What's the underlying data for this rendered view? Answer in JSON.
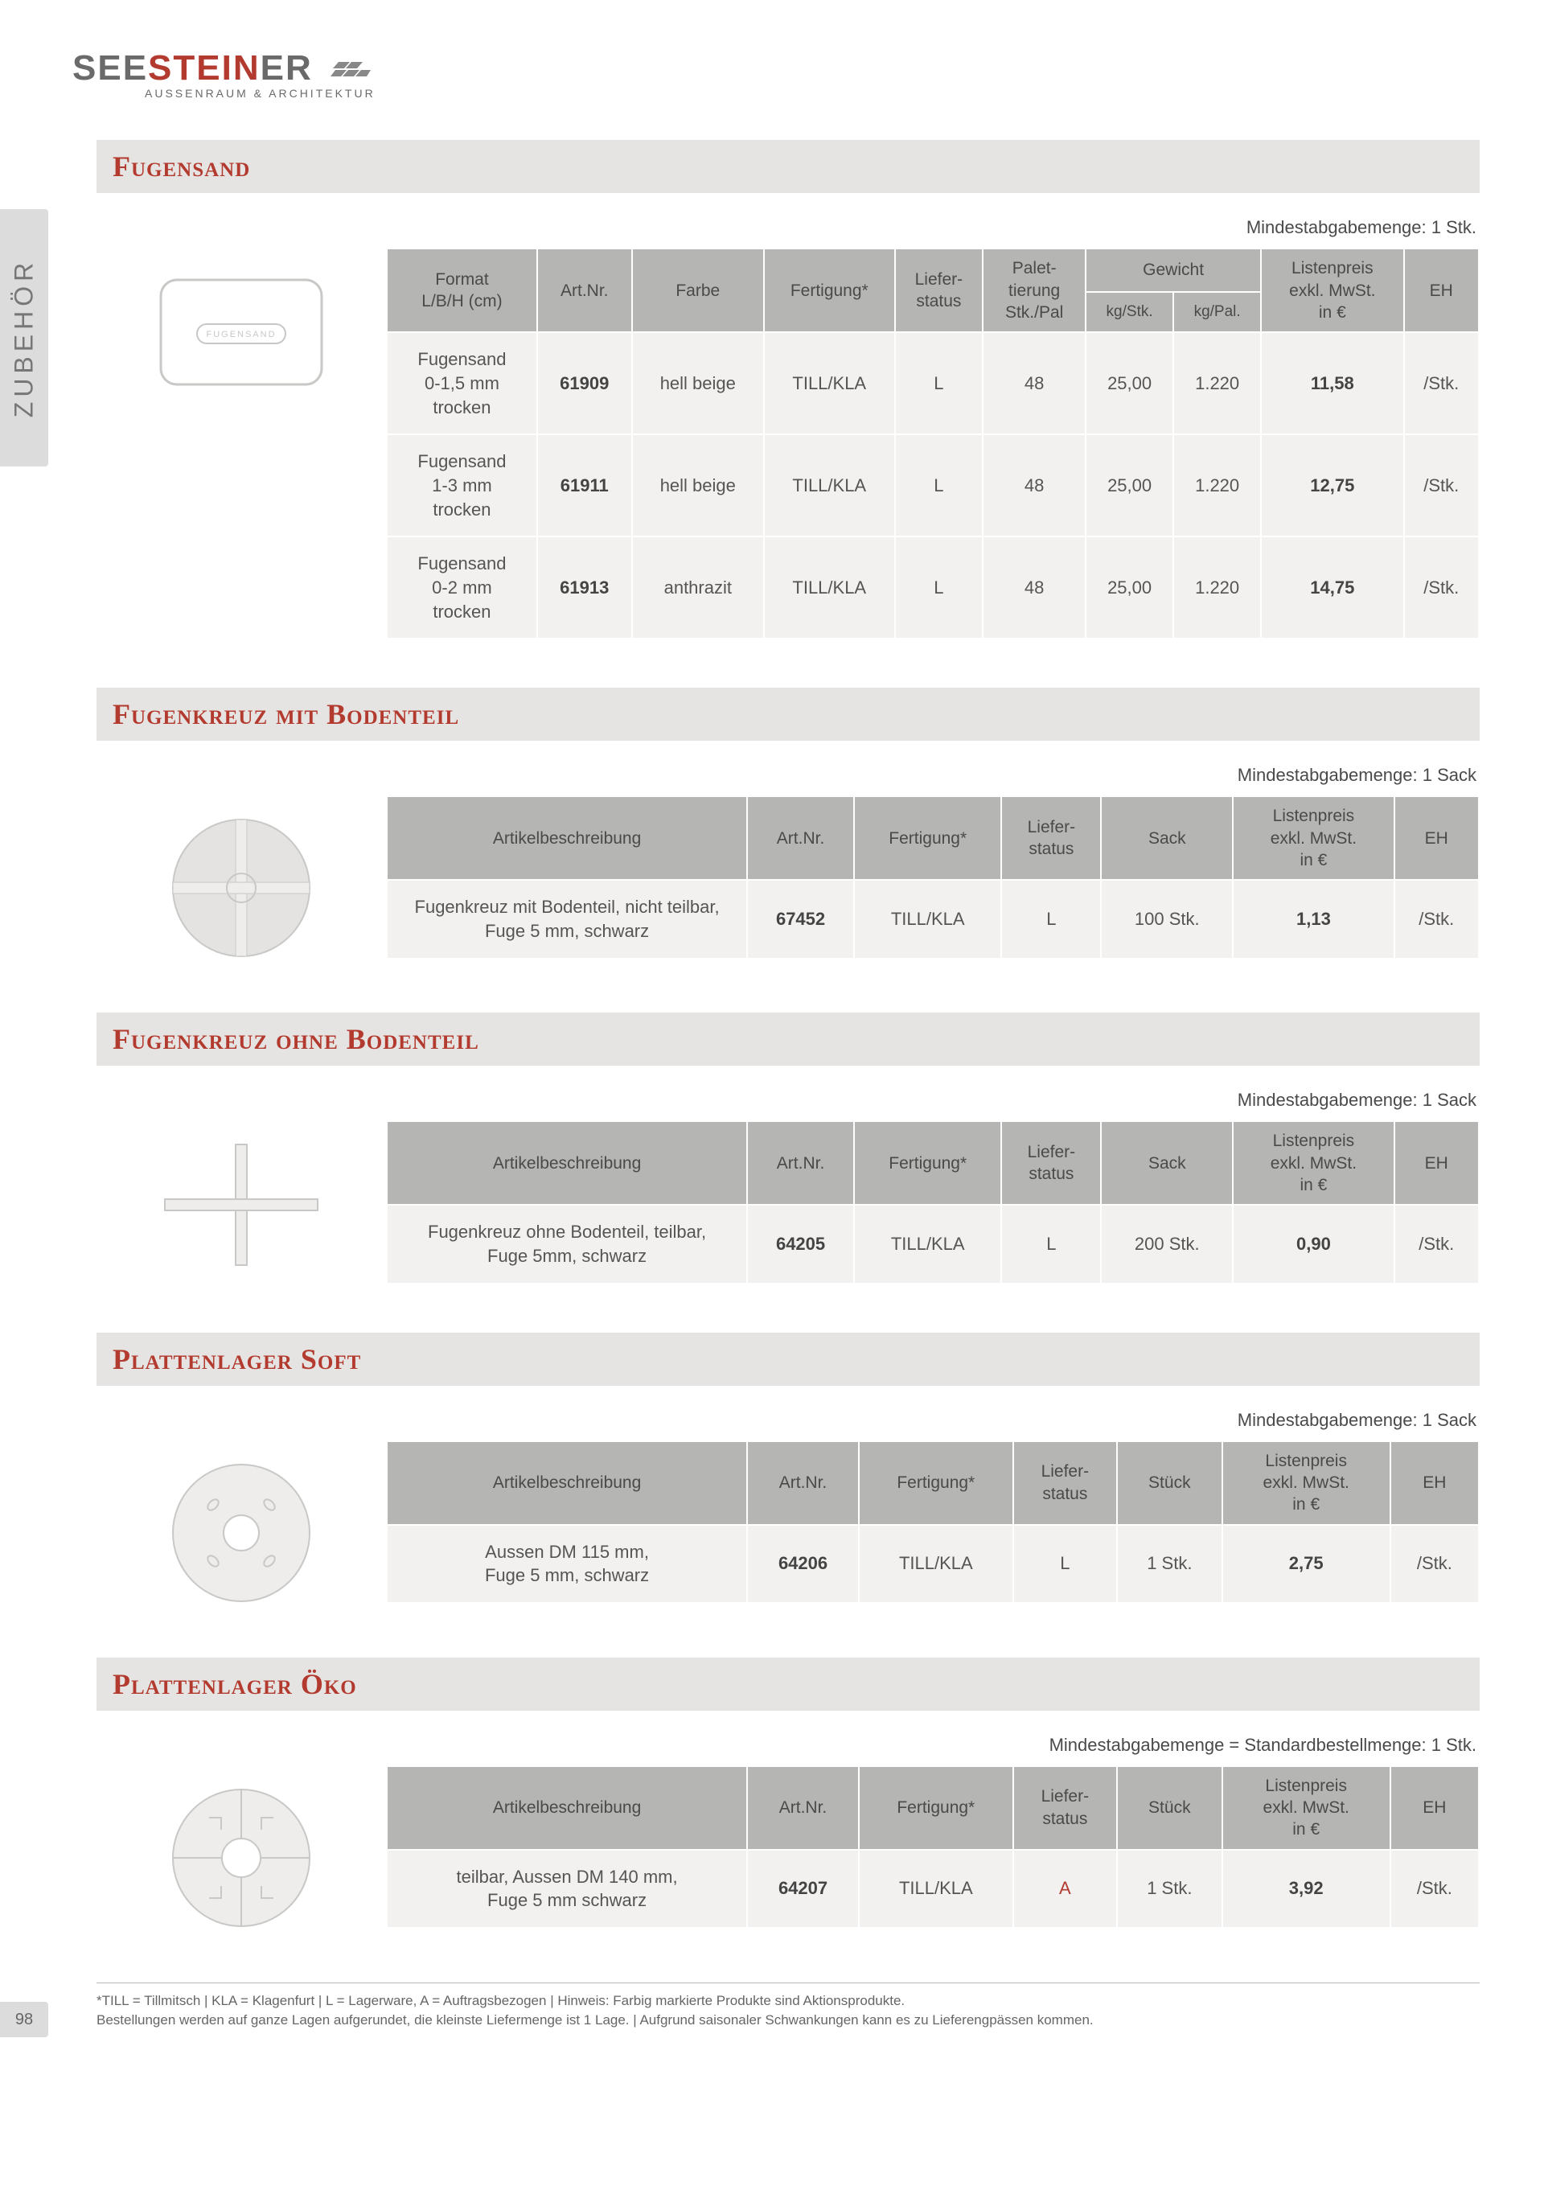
{
  "logo": {
    "pre": "SEE",
    "accent": "STEIN",
    "post": "ER",
    "sub": "AUSSENRAUM & ARCHITEKTUR"
  },
  "side_tab": "ZUBEHÖR",
  "page_number": "98",
  "footnote_line1": "*TILL = Tillmitsch | KLA = Klagenfurt | L = Lagerware, A = Auftragsbezogen | Hinweis: Farbig markierte Produkte sind Aktionsprodukte.",
  "footnote_line2": "Bestellungen werden auf ganze Lagen aufgerundet, die kleinste Liefermenge ist 1 Lage. | Aufgrund saisonaler Schwankungen kann es zu Lieferengpässen kommen.",
  "colors": {
    "accent": "#b33a2f",
    "header_bg": "#b5b5b3",
    "cell_bg": "#f2f1ef",
    "section_bg": "#e6e4e2",
    "tab_bg": "#dcdcdc",
    "text": "#4a4a4a"
  },
  "sections": {
    "fugensand": {
      "title": "Fugensand",
      "min_note": "Mindestabgabemenge: 1 Stk.",
      "headers": {
        "format": "Format\nL/B/H (cm)",
        "artnr": "Art.Nr.",
        "farbe": "Farbe",
        "fertigung": "Fertigung*",
        "liefer": "Liefer-\nstatus",
        "palet": "Palet-\ntierung\nStk./Pal",
        "gewicht": "Gewicht",
        "gewicht_kgstk": "kg/Stk.",
        "gewicht_kgpal": "kg/Pal.",
        "preis": "Listenpreis\nexkl. MwSt.\nin €",
        "eh": "EH"
      },
      "rows": [
        {
          "format": "Fugensand\n0-1,5 mm\ntrocken",
          "artnr": "61909",
          "farbe": "hell beige",
          "fertigung": "TILL/KLA",
          "liefer": "L",
          "palet": "48",
          "kgstk": "25,00",
          "kgpal": "1.220",
          "preis": "11,58",
          "eh": "/Stk."
        },
        {
          "format": "Fugensand\n1-3 mm\ntrocken",
          "artnr": "61911",
          "farbe": "hell beige",
          "fertigung": "TILL/KLA",
          "liefer": "L",
          "palet": "48",
          "kgstk": "25,00",
          "kgpal": "1.220",
          "preis": "12,75",
          "eh": "/Stk."
        },
        {
          "format": "Fugensand\n0-2 mm\ntrocken",
          "artnr": "61913",
          "farbe": "anthrazit",
          "fertigung": "TILL/KLA",
          "liefer": "L",
          "palet": "48",
          "kgstk": "25,00",
          "kgpal": "1.220",
          "preis": "14,75",
          "eh": "/Stk."
        }
      ]
    },
    "fugenkreuz_mit": {
      "title": "Fugenkreuz mit Bodenteil",
      "min_note": "Mindestabgabemenge: 1 Sack",
      "headers": {
        "beschr": "Artikelbeschreibung",
        "artnr": "Art.Nr.",
        "fertigung": "Fertigung*",
        "liefer": "Liefer-\nstatus",
        "sack": "Sack",
        "preis": "Listenpreis\nexkl. MwSt.\nin €",
        "eh": "EH"
      },
      "rows": [
        {
          "beschr": "Fugenkreuz mit Bodenteil, nicht teilbar,\nFuge 5 mm, schwarz",
          "artnr": "67452",
          "fertigung": "TILL/KLA",
          "liefer": "L",
          "sack": "100 Stk.",
          "preis": "1,13",
          "eh": "/Stk."
        }
      ]
    },
    "fugenkreuz_ohne": {
      "title": "Fugenkreuz ohne Bodenteil",
      "min_note": "Mindestabgabemenge: 1 Sack",
      "headers": {
        "beschr": "Artikelbeschreibung",
        "artnr": "Art.Nr.",
        "fertigung": "Fertigung*",
        "liefer": "Liefer-\nstatus",
        "sack": "Sack",
        "preis": "Listenpreis\nexkl. MwSt.\nin €",
        "eh": "EH"
      },
      "rows": [
        {
          "beschr": "Fugenkreuz ohne Bodenteil, teilbar,\nFuge 5mm, schwarz",
          "artnr": "64205",
          "fertigung": "TILL/KLA",
          "liefer": "L",
          "sack": "200 Stk.",
          "preis": "0,90",
          "eh": "/Stk."
        }
      ]
    },
    "plattenlager_soft": {
      "title": "Plattenlager Soft",
      "min_note": "Mindestabgabemenge: 1 Sack",
      "headers": {
        "beschr": "Artikelbeschreibung",
        "artnr": "Art.Nr.",
        "fertigung": "Fertigung*",
        "liefer": "Liefer-\nstatus",
        "stueck": "Stück",
        "preis": "Listenpreis\nexkl. MwSt.\nin €",
        "eh": "EH"
      },
      "rows": [
        {
          "beschr": "Aussen DM 115 mm,\nFuge 5 mm, schwarz",
          "artnr": "64206",
          "fertigung": "TILL/KLA",
          "liefer": "L",
          "stueck": "1 Stk.",
          "preis": "2,75",
          "eh": "/Stk."
        }
      ]
    },
    "plattenlager_oeko": {
      "title": "Plattenlager Öko",
      "min_note": "Mindestabgabemenge = Standardbestellmenge: 1 Stk.",
      "headers": {
        "beschr": "Artikelbeschreibung",
        "artnr": "Art.Nr.",
        "fertigung": "Fertigung*",
        "liefer": "Liefer-\nstatus",
        "stueck": "Stück",
        "preis": "Listenpreis\nexkl. MwSt.\nin €",
        "eh": "EH"
      },
      "rows": [
        {
          "beschr": "teilbar, Aussen DM 140 mm,\nFuge 5 mm schwarz",
          "artnr": "64207",
          "fertigung": "TILL/KLA",
          "liefer": "A",
          "stueck": "1 Stk.",
          "preis": "3,92",
          "eh": "/Stk."
        }
      ]
    }
  }
}
